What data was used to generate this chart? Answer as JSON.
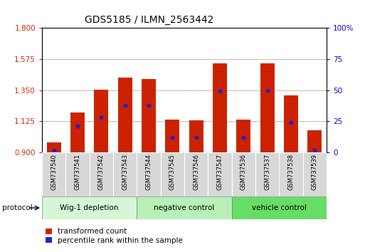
{
  "title": "GDS5185 / ILMN_2563442",
  "samples": [
    "GSM737540",
    "GSM737541",
    "GSM737542",
    "GSM737543",
    "GSM737544",
    "GSM737545",
    "GSM737546",
    "GSM737547",
    "GSM737536",
    "GSM737537",
    "GSM737538",
    "GSM737539"
  ],
  "bar_bottom": 0.9,
  "transformed_count": [
    0.975,
    1.19,
    1.355,
    1.44,
    1.43,
    1.135,
    1.13,
    1.545,
    1.135,
    1.545,
    1.31,
    1.06
  ],
  "percentile_rank": [
    2,
    21,
    28,
    38,
    38,
    12,
    12,
    49,
    12,
    50,
    24,
    2
  ],
  "ylim_left": [
    0.9,
    1.8
  ],
  "ylim_right": [
    0,
    100
  ],
  "yticks_left": [
    0.9,
    1.125,
    1.35,
    1.575,
    1.8
  ],
  "yticks_right": [
    0,
    25,
    50,
    75,
    100
  ],
  "groups": [
    {
      "label": "Wig-1 depletion",
      "start": 0,
      "end": 4,
      "color": "#d4f7d4"
    },
    {
      "label": "negative control",
      "start": 4,
      "end": 8,
      "color": "#b8f0b8"
    },
    {
      "label": "vehicle control",
      "start": 8,
      "end": 12,
      "color": "#66dd66"
    }
  ],
  "bar_color": "#cc2200",
  "dot_color": "#2222cc",
  "cell_bg": "#d8d8d8",
  "plot_bg": "#ffffff",
  "left_tick_color": "#cc2200",
  "right_tick_color": "#0000cc",
  "legend_red": "transformed count",
  "legend_blue": "percentile rank within the sample",
  "protocol_label": "protocol"
}
